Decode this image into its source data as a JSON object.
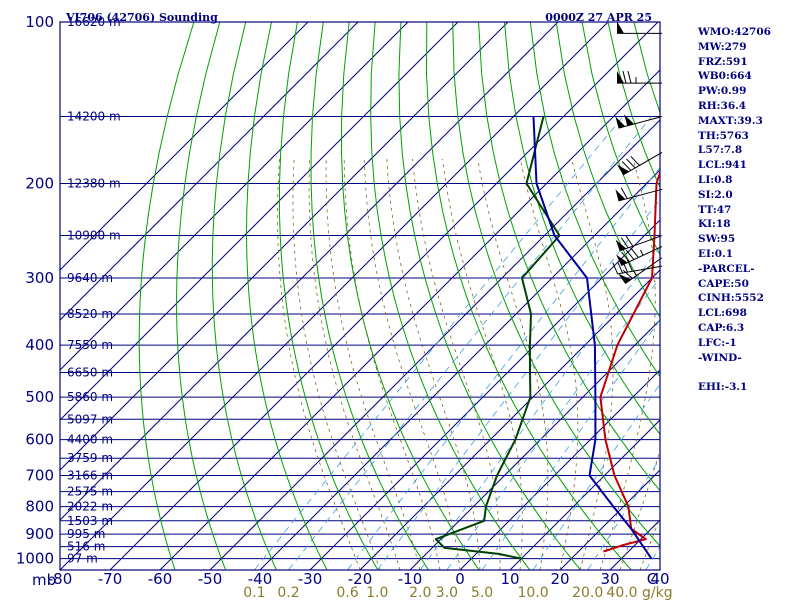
{
  "chart_data": {
    "type": "line",
    "title": "VI706 (42706) Sounding",
    "time_label": "0000Z 27 APR 25",
    "y_axis_unit": "mb",
    "x_axis_unit": "C",
    "mixing_ratio_unit": "g/kg",
    "pressure_levels": [
      100,
      200,
      300,
      400,
      500,
      600,
      700,
      800,
      900,
      1000
    ],
    "pressure_range": [
      100,
      1050
    ],
    "temperature_range": [
      -80,
      40
    ],
    "temperature_ticks": [
      -80,
      -70,
      -60,
      -50,
      -40,
      -30,
      -20,
      -10,
      0,
      10,
      20,
      30,
      40
    ],
    "mixing_ratio_labels": [
      "0.1",
      "0.2",
      "0.6",
      "1.0",
      "2.0",
      "3.0",
      "5.0",
      "10.0",
      "20.0",
      "40.0"
    ],
    "height_labels": [
      {
        "p": 100,
        "text": "16620 m"
      },
      {
        "p": 150,
        "text": "14200 m"
      },
      {
        "p": 200,
        "text": "12380 m"
      },
      {
        "p": 250,
        "text": "10900 m"
      },
      {
        "p": 300,
        "text": "9640 m"
      },
      {
        "p": 350,
        "text": "8520 m"
      },
      {
        "p": 400,
        "text": "7550 m"
      },
      {
        "p": 450,
        "text": "6650 m"
      },
      {
        "p": 500,
        "text": "5860 m"
      },
      {
        "p": 550,
        "text": "5097 m"
      },
      {
        "p": 600,
        "text": "4400 m"
      },
      {
        "p": 650,
        "text": "3759 m"
      },
      {
        "p": 700,
        "text": "3166 m"
      },
      {
        "p": 750,
        "text": "2575 m"
      },
      {
        "p": 800,
        "text": "2022 m"
      },
      {
        "p": 850,
        "text": "1503 m"
      },
      {
        "p": 900,
        "text": "995 m"
      },
      {
        "p": 950,
        "text": "516 m"
      },
      {
        "p": 1000,
        "text": "97 m"
      }
    ],
    "series": [
      {
        "name": "Temperature",
        "color": "#c00000",
        "points": [
          [
            -53.5,
            100
          ],
          [
            -47,
            150
          ],
          [
            -38,
            200
          ],
          [
            -28,
            250
          ],
          [
            -20,
            300
          ],
          [
            -13.5,
            400
          ],
          [
            -6.5,
            500
          ],
          [
            3,
            600
          ],
          [
            12,
            700
          ],
          [
            21,
            800
          ],
          [
            26,
            880
          ],
          [
            31,
            920
          ],
          [
            27.5,
            945
          ],
          [
            25,
            970
          ]
        ]
      },
      {
        "name": "Dewpoint",
        "color": "#004000",
        "points": [
          [
            -74,
            150
          ],
          [
            -64,
            200
          ],
          [
            -47,
            250
          ],
          [
            -46,
            300
          ],
          [
            -37,
            350
          ],
          [
            -31,
            400
          ],
          [
            -25.5,
            450
          ],
          [
            -20.5,
            500
          ],
          [
            -15,
            600
          ],
          [
            -11.5,
            700
          ],
          [
            -7.5,
            800
          ],
          [
            -5,
            850
          ],
          [
            -11,
            920
          ],
          [
            -7.5,
            955
          ],
          [
            4.5,
            980
          ],
          [
            10,
            1000
          ]
        ]
      },
      {
        "name": "Parcel",
        "color": "#0000a0",
        "points": [
          [
            -76,
            150
          ],
          [
            -62,
            200
          ],
          [
            -48,
            250
          ],
          [
            -33,
            300
          ],
          [
            -18,
            400
          ],
          [
            -7.5,
            500
          ],
          [
            1,
            600
          ],
          [
            7,
            700
          ],
          [
            18,
            800
          ],
          [
            26,
            880
          ],
          [
            32,
            950
          ],
          [
            36,
            1000
          ]
        ]
      }
    ],
    "wind_barbs": [
      {
        "p": 105,
        "dir": 270,
        "spd": 50
      },
      {
        "p": 130,
        "dir": 270,
        "spd": 75
      },
      {
        "p": 150,
        "dir": 255,
        "spd": 100
      },
      {
        "p": 175,
        "dir": 240,
        "spd": 80
      },
      {
        "p": 205,
        "dir": 255,
        "spd": 60
      },
      {
        "p": 250,
        "dir": 250,
        "spd": 70
      },
      {
        "p": 262,
        "dir": 245,
        "spd": 85
      },
      {
        "p": 275,
        "dir": 235,
        "spd": 65
      },
      {
        "p": 285,
        "dir": 260,
        "spd": 40
      }
    ]
  },
  "indices": [
    "WMO:42706",
    "MW:279",
    "FRZ:591",
    "WB0:664",
    "PW:0.99",
    "RH:36.4",
    "MAXT:39.3",
    "TH:5763",
    "L57:7.8",
    "LCL:941",
    "LI:0.8",
    "SI:2.0",
    "TT:47",
    "KI:18",
    "SW:95",
    "EI:0.1",
    "-PARCEL-",
    "CAPE:50",
    "CINH:5552",
    "LCL:698",
    "CAP:6.3",
    "LFC:-1",
    "-WIND-",
    "",
    "EHI:-3.1"
  ],
  "colors": {
    "isobar": "#000080",
    "isotherm": "#000080",
    "dry_adiabat": "#00a000",
    "moist_adiabat": "#7a6a20",
    "mixing_ratio": "#40a0e0"
  }
}
